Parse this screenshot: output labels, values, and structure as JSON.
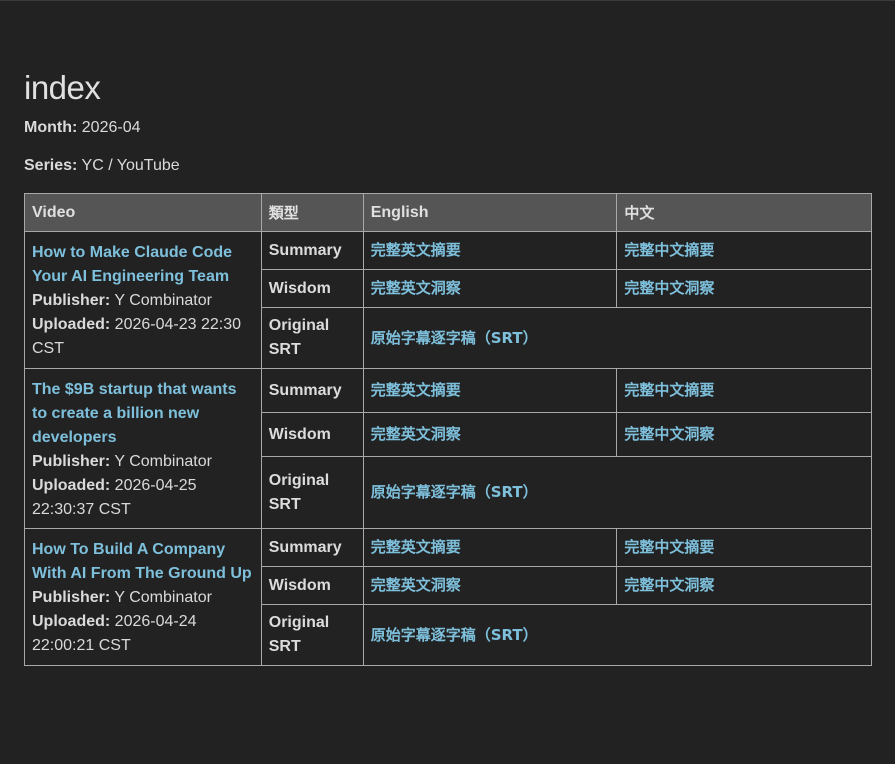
{
  "title": "index",
  "month": {
    "label": "Month:",
    "value": "2026-04"
  },
  "series": {
    "label": "Series:",
    "value": "YC / YouTube"
  },
  "table": {
    "headers": [
      "Video",
      "類型",
      "English",
      "中文"
    ],
    "publisher_label": "Publisher:",
    "uploaded_label": "Uploaded:",
    "videos": [
      {
        "title": "How to Make Claude Code Your AI Engineering Team",
        "publisher": "Y Combinator",
        "uploaded": "2026-04-23 22:30 CST",
        "rows": [
          {
            "type": "Summary",
            "en": "完整英文摘要",
            "zh": "完整中文摘要"
          },
          {
            "type": "Wisdom",
            "en": "完整英文洞察",
            "zh": "完整中文洞察"
          },
          {
            "type": "Original SRT",
            "srt": "原始字幕逐字稿（SRT）"
          }
        ]
      },
      {
        "title": "The $9B startup that wants to create a billion new developers",
        "publisher": "Y Combinator",
        "uploaded": "2026-04-25 22:30:37 CST",
        "rows": [
          {
            "type": "Summary",
            "en": "完整英文摘要",
            "zh": "完整中文摘要"
          },
          {
            "type": "Wisdom",
            "en": "完整英文洞察",
            "zh": "完整中文洞察"
          },
          {
            "type": "Original SRT",
            "srt": "原始字幕逐字稿（SRT）"
          }
        ]
      },
      {
        "title": "How To Build A Company With AI From The Ground Up",
        "publisher": "Y Combinator",
        "uploaded": "2026-04-24 22:00:21 CST",
        "rows": [
          {
            "type": "Summary",
            "en": "完整英文摘要",
            "zh": "完整中文摘要"
          },
          {
            "type": "Wisdom",
            "en": "完整英文洞察",
            "zh": "完整中文洞察"
          },
          {
            "type": "Original SRT",
            "srt": "原始字幕逐字稿（SRT）"
          }
        ]
      }
    ]
  },
  "colors": {
    "background": "#222222",
    "header": "#555555",
    "link": "#7ec0dc",
    "border": "#a8a8a8"
  }
}
